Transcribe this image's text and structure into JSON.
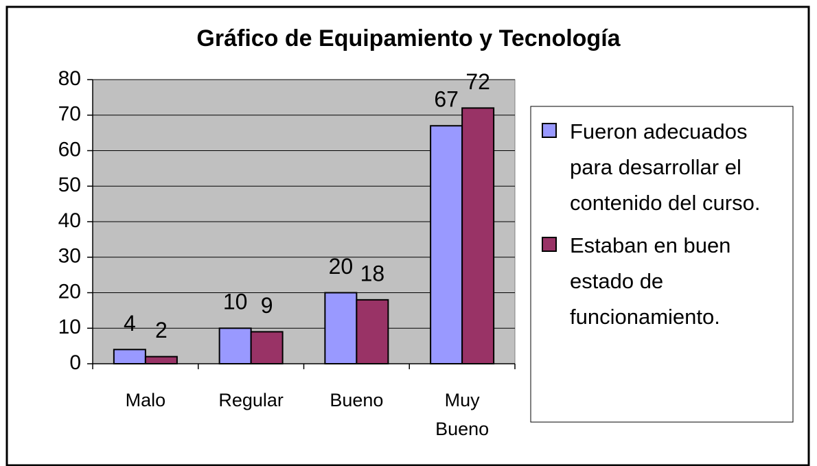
{
  "chart_data": {
    "type": "bar",
    "title": "Gráfico de Equipamiento y Tecnología",
    "categories": [
      "Malo",
      "Regular",
      "Bueno",
      "Muy Bueno"
    ],
    "series": [
      {
        "name": "Fueron adecuados para desarrollar el contenido del curso.",
        "color": "#9999ff",
        "values": [
          4,
          10,
          20,
          67
        ]
      },
      {
        "name": "Estaban en buen estado de funcionamiento.",
        "color": "#993366",
        "values": [
          2,
          9,
          18,
          72
        ]
      }
    ],
    "ylim": [
      0,
      80
    ],
    "yticks": [
      0,
      10,
      20,
      30,
      40,
      50,
      60,
      70,
      80
    ],
    "grid": true,
    "legend": "right"
  }
}
